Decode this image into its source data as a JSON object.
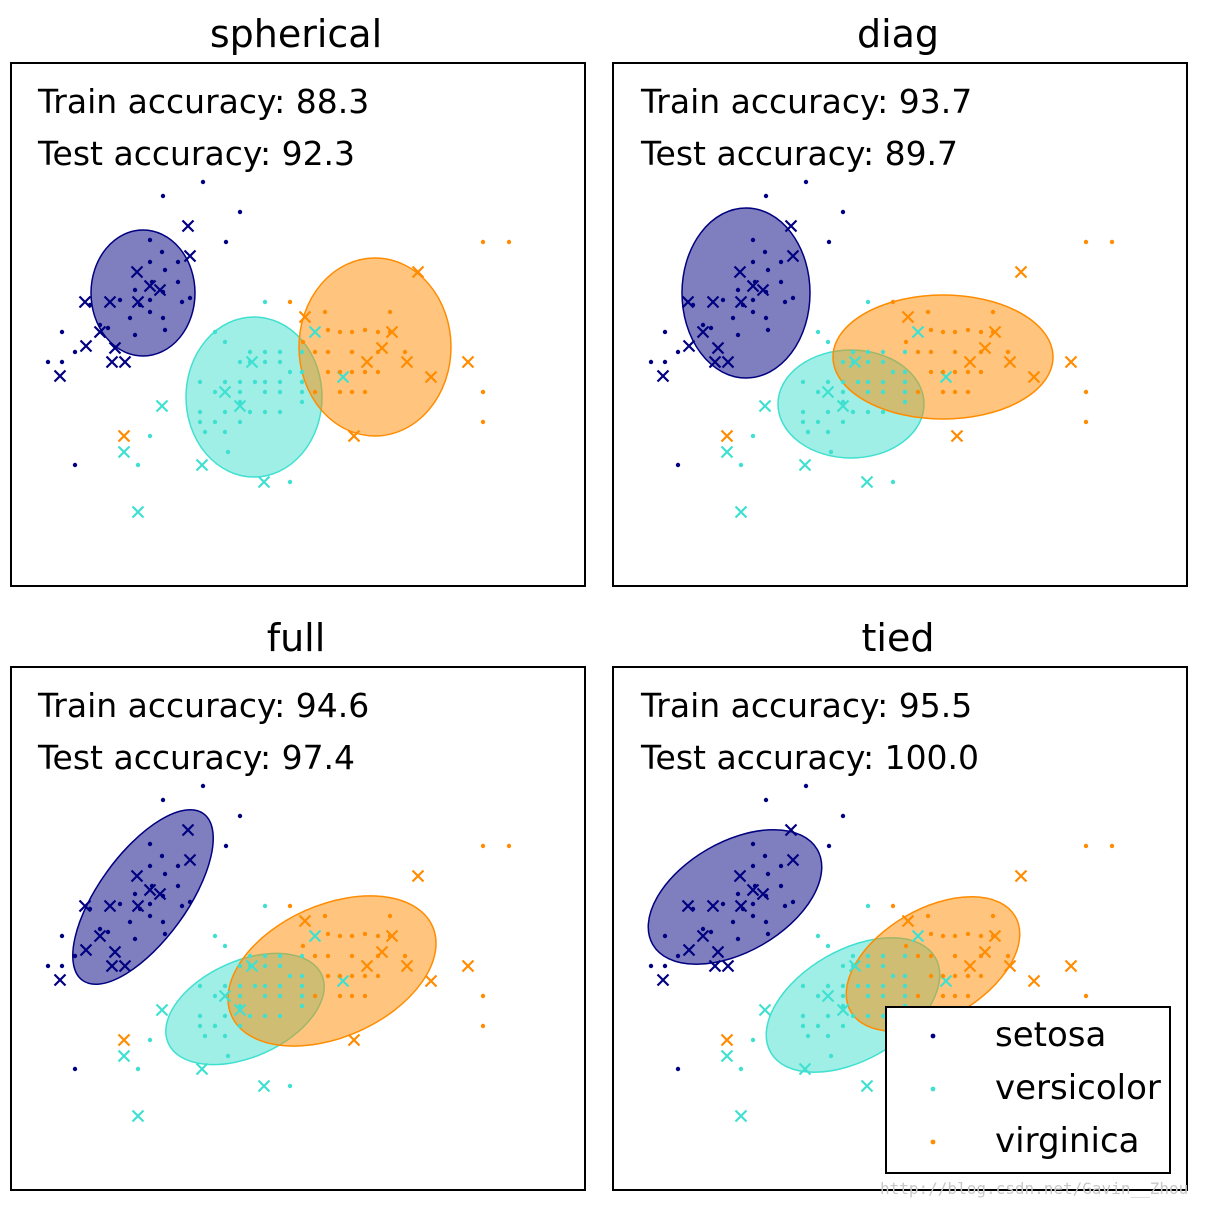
{
  "colors": {
    "setosa": "#000080",
    "versicolor": "#40e0d0",
    "virginica": "#ff8c00"
  },
  "legend": {
    "items": [
      {
        "key": "setosa",
        "label": "setosa"
      },
      {
        "key": "versicolor",
        "label": "versicolor"
      },
      {
        "key": "virginica",
        "label": "virginica"
      }
    ],
    "placement": "lower-right-of-tied"
  },
  "watermark": "http://blog.csdn.net/Gavin__Zhou",
  "chart_data": [
    {
      "type": "scatter",
      "title": "spherical",
      "train_label": "Train accuracy: 88.3",
      "test_label": "Test accuracy: 92.3"
    },
    {
      "type": "scatter",
      "title": "diag",
      "train_label": "Train accuracy: 93.7",
      "test_label": "Test accuracy: 89.7"
    },
    {
      "type": "scatter",
      "title": "full",
      "train_label": "Train accuracy: 94.6",
      "test_label": "Test accuracy: 97.4"
    },
    {
      "type": "scatter",
      "title": "tied",
      "train_label": "Train accuracy: 95.5",
      "test_label": "Test accuracy: 100.0"
    }
  ]
}
